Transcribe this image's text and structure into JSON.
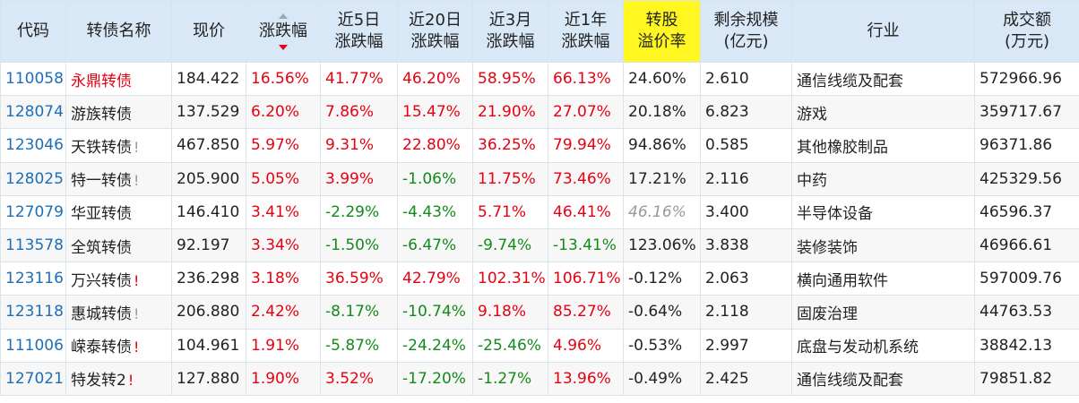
{
  "headers": [
    {
      "key": "code",
      "lines": [
        "代码"
      ]
    },
    {
      "key": "name",
      "lines": [
        "转债名称"
      ]
    },
    {
      "key": "price",
      "lines": [
        "现价"
      ]
    },
    {
      "key": "chg",
      "lines": [
        "涨跌幅"
      ]
    },
    {
      "key": "chg5d",
      "lines": [
        "近5日",
        "涨跌幅"
      ]
    },
    {
      "key": "chg20d",
      "lines": [
        "近20日",
        "涨跌幅"
      ]
    },
    {
      "key": "chg3m",
      "lines": [
        "近3月",
        "涨跌幅"
      ]
    },
    {
      "key": "chg1y",
      "lines": [
        "近1年",
        "涨跌幅"
      ]
    },
    {
      "key": "premium",
      "lines": [
        "转股",
        "溢价率"
      ]
    },
    {
      "key": "scale",
      "lines": [
        "剩余规模",
        "(亿元)"
      ]
    },
    {
      "key": "industry",
      "lines": [
        "行业"
      ]
    },
    {
      "key": "amount",
      "lines": [
        "成交额",
        "(万元)"
      ]
    }
  ],
  "rows": [
    {
      "code": "110058",
      "name": "永鼎转债",
      "name_color": "red",
      "warn": "",
      "price": "184.422",
      "chg": "16.56%",
      "chg5d": "41.77%",
      "chg20d": "46.20%",
      "chg3m": "58.95%",
      "chg1y": "66.13%",
      "premium": "24.60%",
      "scale": "2.610",
      "industry": "通信线缆及配套",
      "amount": "572966.96"
    },
    {
      "code": "128074",
      "name": "游族转债",
      "name_color": "normal",
      "warn": "",
      "price": "137.529",
      "chg": "6.20%",
      "chg5d": "7.86%",
      "chg20d": "15.47%",
      "chg3m": "21.90%",
      "chg1y": "27.07%",
      "premium": "20.18%",
      "scale": "6.823",
      "industry": "游戏",
      "amount": "359717.67"
    },
    {
      "code": "123046",
      "name": "天铁转债",
      "name_color": "normal",
      "warn": "gray",
      "price": "467.850",
      "chg": "5.97%",
      "chg5d": "9.31%",
      "chg20d": "22.80%",
      "chg3m": "36.25%",
      "chg1y": "79.94%",
      "premium": "94.86%",
      "scale": "0.585",
      "industry": "其他橡胶制品",
      "amount": "96371.86"
    },
    {
      "code": "128025",
      "name": "特一转债",
      "name_color": "normal",
      "warn": "gray",
      "price": "205.900",
      "chg": "5.05%",
      "chg5d": "3.99%",
      "chg20d": "-1.06%",
      "chg3m": "11.75%",
      "chg1y": "73.46%",
      "premium": "17.21%",
      "scale": "2.116",
      "industry": "中药",
      "amount": "425329.56"
    },
    {
      "code": "127079",
      "name": "华亚转债",
      "name_color": "normal",
      "warn": "",
      "price": "146.410",
      "chg": "3.41%",
      "chg5d": "-2.29%",
      "chg20d": "-4.43%",
      "chg3m": "5.71%",
      "chg1y": "46.41%",
      "premium": "46.16%",
      "premium_style": "gray",
      "scale": "3.400",
      "industry": "半导体设备",
      "amount": "46596.37"
    },
    {
      "code": "113578",
      "name": "全筑转债",
      "name_color": "normal",
      "warn": "",
      "price": "92.197",
      "chg": "3.34%",
      "chg5d": "-1.50%",
      "chg20d": "-6.47%",
      "chg3m": "-9.74%",
      "chg1y": "-13.41%",
      "premium": "123.06%",
      "scale": "3.838",
      "industry": "装修装饰",
      "amount": "46966.61"
    },
    {
      "code": "123116",
      "name": "万兴转债",
      "name_color": "normal",
      "warn": "red",
      "price": "236.298",
      "chg": "3.18%",
      "chg5d": "36.59%",
      "chg20d": "42.79%",
      "chg3m": "102.31%",
      "chg1y": "106.71%",
      "premium": "-0.12%",
      "scale": "2.063",
      "industry": "横向通用软件",
      "amount": "597009.76"
    },
    {
      "code": "123118",
      "name": "惠城转债",
      "name_color": "normal",
      "warn": "gray",
      "price": "206.880",
      "chg": "2.42%",
      "chg5d": "-8.17%",
      "chg20d": "-10.74%",
      "chg3m": "9.18%",
      "chg1y": "85.27%",
      "premium": "-0.64%",
      "scale": "2.118",
      "industry": "固废治理",
      "amount": "44763.53"
    },
    {
      "code": "111006",
      "name": "嵘泰转债",
      "name_color": "normal",
      "warn": "red",
      "price": "104.961",
      "chg": "1.91%",
      "chg5d": "-5.87%",
      "chg20d": "-24.24%",
      "chg3m": "-25.46%",
      "chg1y": "4.96%",
      "premium": "-0.53%",
      "scale": "2.997",
      "industry": "底盘与发动机系统",
      "amount": "38842.13"
    },
    {
      "code": "127021",
      "name": "特发转2",
      "name_color": "normal",
      "warn": "red",
      "price": "127.880",
      "chg": "1.90%",
      "chg5d": "3.52%",
      "chg20d": "-17.20%",
      "chg3m": "-1.27%",
      "chg1y": "13.96%",
      "premium": "-0.49%",
      "scale": "2.425",
      "industry": "通信线缆及配套",
      "amount": "79851.82"
    }
  ],
  "warn_symbol": "!",
  "colors": {
    "header_bg": "#d9e8f7",
    "highlight_header": "#fff71f",
    "up": "#e60012",
    "down": "#138a1a",
    "code": "#1c6fb7"
  },
  "sort": {
    "column": "chg",
    "direction": "desc"
  }
}
